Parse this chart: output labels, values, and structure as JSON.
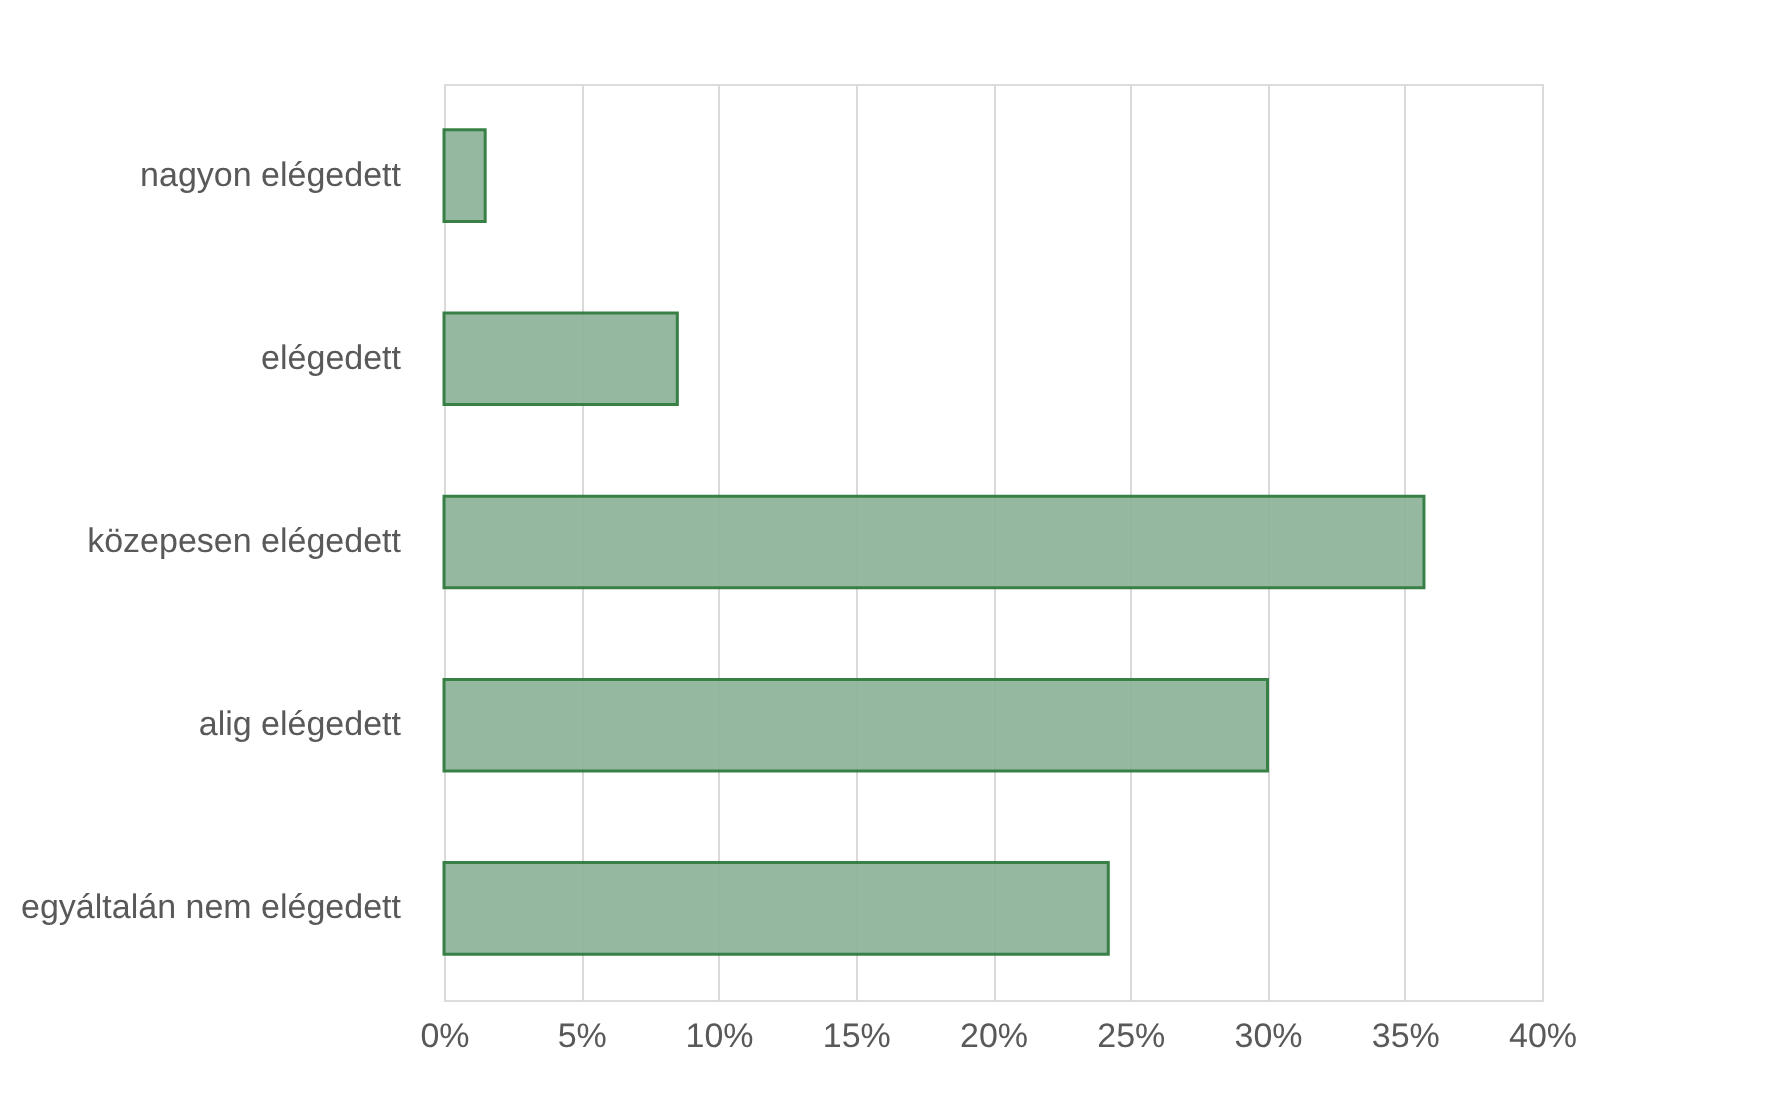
{
  "chart_data": {
    "type": "bar",
    "orientation": "horizontal",
    "categories": [
      "nagyon elégedett",
      "elégedett",
      "közepesen elégedett",
      "alig elégedett",
      "egyáltalán nem elégedett"
    ],
    "values": [
      1.5,
      8.5,
      35.7,
      30,
      24.2
    ],
    "color": "#8fb59b",
    "xlim": [
      0,
      40
    ],
    "xticks": [
      {
        "value": 0,
        "label": "0%"
      },
      {
        "value": 5,
        "label": "5%"
      },
      {
        "value": 10,
        "label": "10%"
      },
      {
        "value": 15,
        "label": "15%"
      },
      {
        "value": 20,
        "label": "20%"
      },
      {
        "value": 25,
        "label": "25%"
      },
      {
        "value": 30,
        "label": "30%"
      },
      {
        "value": 35,
        "label": "35%"
      },
      {
        "value": 40,
        "label": "40%"
      }
    ],
    "grid": "x"
  }
}
